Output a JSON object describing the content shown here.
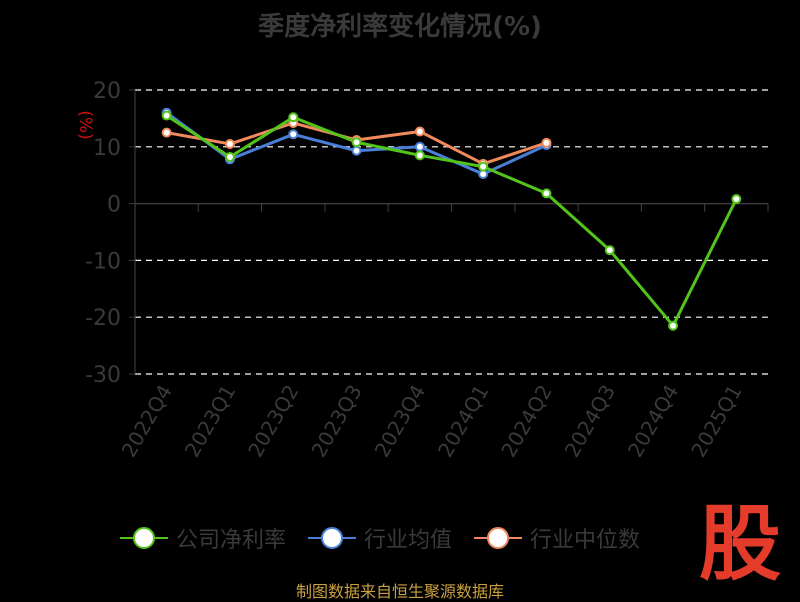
{
  "title": "季度净利率变化情况(%)",
  "footer": "制图数据来自恒生聚源数据库",
  "logo_text": "股",
  "chart_data": {
    "type": "line",
    "categories": [
      "2022Q4",
      "2023Q1",
      "2023Q2",
      "2023Q3",
      "2023Q4",
      "2024Q1",
      "2024Q2",
      "2024Q3",
      "2024Q4",
      "2025Q1"
    ],
    "ylabel": "(%)",
    "ylim": [
      -30,
      20
    ],
    "yticks": [
      20,
      10,
      0,
      -10,
      -20,
      -30
    ],
    "grid": true,
    "legend_position": "bottom",
    "series": [
      {
        "name": "公司净利率",
        "color": "#52c41a",
        "values": [
          15.5,
          8.2,
          15.2,
          10.8,
          8.5,
          6.5,
          1.8,
          -8.2,
          -21.5,
          0.8
        ]
      },
      {
        "name": "行业均值",
        "color": "#4a7fd9",
        "values": [
          16.0,
          7.8,
          12.2,
          9.3,
          10.0,
          5.2,
          10.3,
          null,
          null,
          null
        ]
      },
      {
        "name": "行业中位数",
        "color": "#f08a5d",
        "values": [
          12.5,
          10.5,
          14.2,
          11.2,
          12.7,
          7.0,
          10.7,
          null,
          null,
          null
        ]
      }
    ]
  }
}
